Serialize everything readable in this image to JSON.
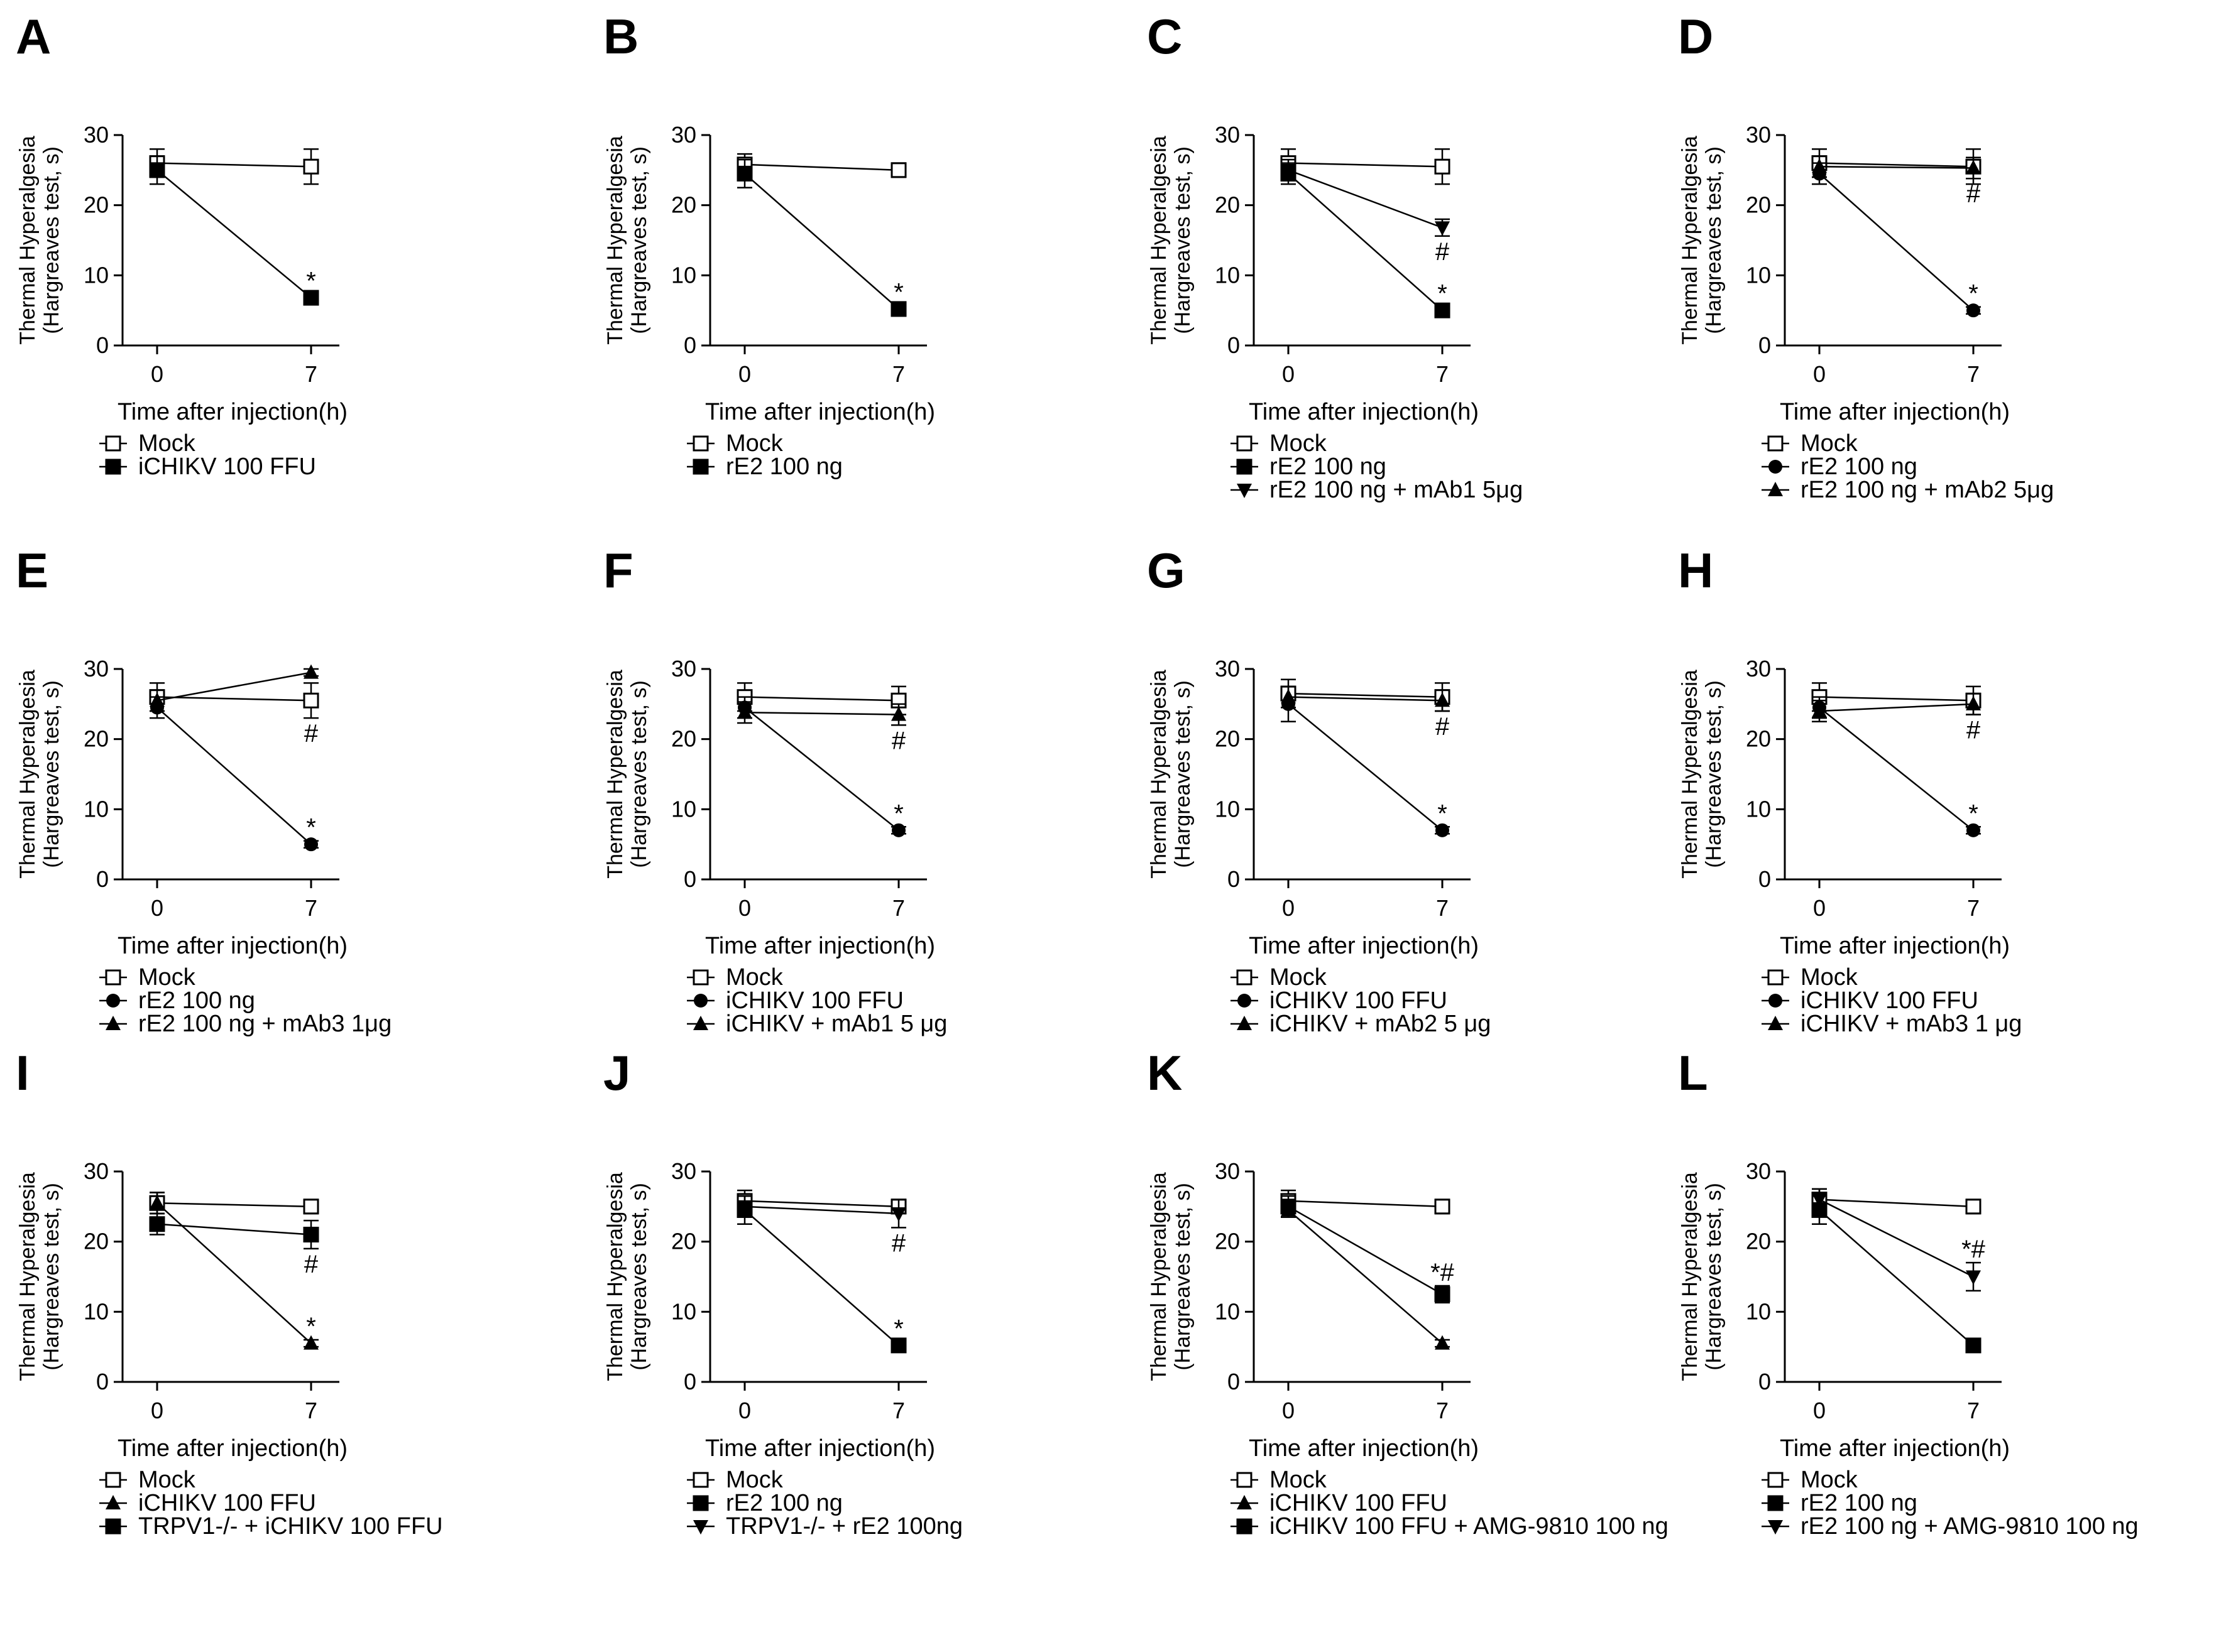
{
  "figure": {
    "background": "#ffffff",
    "ink": "#000000"
  },
  "chart_data": [
    {
      "id": "A",
      "type": "line",
      "panel_label": "A",
      "ylabel_lines": [
        "Thermal Hyperalgesia",
        "(Hargreaves test, s)"
      ],
      "xlabel": "Time after injection(h)",
      "x_categories": [
        "0",
        "7"
      ],
      "y_ticks": [
        0,
        10,
        20,
        30
      ],
      "ylim": [
        0,
        30
      ],
      "series": [
        {
          "name": "Mock",
          "marker": "square-open",
          "values": [
            26,
            25.5
          ],
          "errors": [
            2,
            2.5
          ]
        },
        {
          "name": "iCHIKV 100 FFU",
          "marker": "square",
          "values": [
            25,
            6.8
          ],
          "errors": [
            2,
            0.5
          ]
        }
      ],
      "annotations": [
        {
          "x": "7",
          "series": 1,
          "text": "*"
        }
      ]
    },
    {
      "id": "B",
      "type": "line",
      "panel_label": "B",
      "ylabel_lines": [
        "Thermal Hyperalgesia",
        "(Hargreaves test, s)"
      ],
      "xlabel": "Time after injection(h)",
      "x_categories": [
        "0",
        "7"
      ],
      "y_ticks": [
        0,
        10,
        20,
        30
      ],
      "ylim": [
        0,
        30
      ],
      "series": [
        {
          "name": "Mock",
          "marker": "square-open",
          "values": [
            25.8,
            25
          ],
          "errors": [
            1.5,
            1
          ]
        },
        {
          "name": "rE2 100 ng",
          "marker": "square",
          "values": [
            24.5,
            5.2
          ],
          "errors": [
            2,
            0.5
          ]
        }
      ],
      "annotations": [
        {
          "x": "7",
          "series": 1,
          "text": "*"
        }
      ]
    },
    {
      "id": "C",
      "type": "line",
      "panel_label": "C",
      "ylabel_lines": [
        "Thermal Hyperalgesia",
        "(Hargreaves test, s)"
      ],
      "xlabel": "Time after injection(h)",
      "x_categories": [
        "0",
        "7"
      ],
      "y_ticks": [
        0,
        10,
        20,
        30
      ],
      "ylim": [
        0,
        30
      ],
      "series": [
        {
          "name": "Mock",
          "marker": "square-open",
          "values": [
            26,
            25.5
          ],
          "errors": [
            2,
            2.5
          ]
        },
        {
          "name": "rE2 100 ng",
          "marker": "square",
          "values": [
            24.5,
            5
          ],
          "errors": [
            1.5,
            0.5
          ]
        },
        {
          "name": "rE2 100 ng + mAb1 5μg",
          "marker": "triangle-down",
          "values": [
            25,
            16.8
          ],
          "errors": [
            1.5,
            1.2
          ]
        }
      ],
      "annotations": [
        {
          "x": "7",
          "series": 1,
          "text": "*"
        },
        {
          "x": "7",
          "series": 2,
          "text": "#"
        }
      ]
    },
    {
      "id": "D",
      "type": "line",
      "panel_label": "D",
      "ylabel_lines": [
        "Thermal Hyperalgesia",
        "(Hargreaves test, s)"
      ],
      "xlabel": "Time after injection(h)",
      "x_categories": [
        "0",
        "7"
      ],
      "y_ticks": [
        0,
        10,
        20,
        30
      ],
      "ylim": [
        0,
        30
      ],
      "series": [
        {
          "name": "Mock",
          "marker": "square-open",
          "values": [
            26,
            25.5
          ],
          "errors": [
            2,
            2.5
          ]
        },
        {
          "name": "rE2 100 ng",
          "marker": "circle",
          "values": [
            24.5,
            5
          ],
          "errors": [
            1.5,
            0.5
          ]
        },
        {
          "name": "rE2 100 ng + mAb2 5μg",
          "marker": "triangle",
          "values": [
            25.5,
            25.3
          ],
          "errors": [
            1.5,
            1.5
          ]
        }
      ],
      "annotations": [
        {
          "x": "7",
          "series": 1,
          "text": "*"
        },
        {
          "x": "7",
          "series": 2,
          "text": "#"
        }
      ]
    },
    {
      "id": "E",
      "type": "line",
      "panel_label": "E",
      "ylabel_lines": [
        "Thermal Hyperalgesia",
        "(Hargreaves test, s)"
      ],
      "xlabel": "Time after injection(h)",
      "x_categories": [
        "0",
        "7"
      ],
      "y_ticks": [
        0,
        10,
        20,
        30
      ],
      "ylim": [
        0,
        30
      ],
      "series": [
        {
          "name": "Mock",
          "marker": "square-open",
          "values": [
            26,
            25.5
          ],
          "errors": [
            2,
            2.5
          ]
        },
        {
          "name": "rE2 100 ng",
          "marker": "circle",
          "values": [
            24.5,
            5
          ],
          "errors": [
            1.5,
            0.5
          ]
        },
        {
          "name": "rE2 100 ng + mAb3 1μg",
          "marker": "triangle",
          "values": [
            25.5,
            29.5
          ],
          "errors": [
            1.5,
            0.5
          ]
        }
      ],
      "annotations": [
        {
          "x": "7",
          "series": 1,
          "text": "*"
        },
        {
          "x": "7",
          "series": 0,
          "text": "#"
        }
      ]
    },
    {
      "id": "F",
      "type": "line",
      "panel_label": "F",
      "ylabel_lines": [
        "Thermal Hyperalgesia",
        "(Hargreaves test, s)"
      ],
      "xlabel": "Time after injection(h)",
      "x_categories": [
        "0",
        "7"
      ],
      "y_ticks": [
        0,
        10,
        20,
        30
      ],
      "ylim": [
        0,
        30
      ],
      "series": [
        {
          "name": "Mock",
          "marker": "square-open",
          "values": [
            26,
            25.5
          ],
          "errors": [
            2,
            2
          ]
        },
        {
          "name": "iCHIKV 100 FFU",
          "marker": "circle",
          "values": [
            24.5,
            7
          ],
          "errors": [
            1.5,
            0.5
          ]
        },
        {
          "name": "iCHIKV + mAb1 5 μg",
          "marker": "triangle",
          "values": [
            23.8,
            23.5
          ],
          "errors": [
            1.5,
            1.5
          ]
        }
      ],
      "annotations": [
        {
          "x": "7",
          "series": 1,
          "text": "*"
        },
        {
          "x": "7",
          "series": 2,
          "text": "#"
        }
      ]
    },
    {
      "id": "G",
      "type": "line",
      "panel_label": "G",
      "ylabel_lines": [
        "Thermal Hyperalgesia",
        "(Hargreaves test, s)"
      ],
      "xlabel": "Time after injection(h)",
      "x_categories": [
        "0",
        "7"
      ],
      "y_ticks": [
        0,
        10,
        20,
        30
      ],
      "ylim": [
        0,
        30
      ],
      "series": [
        {
          "name": "Mock",
          "marker": "square-open",
          "values": [
            26.5,
            26
          ],
          "errors": [
            2,
            2
          ]
        },
        {
          "name": "iCHIKV 100 FFU",
          "marker": "circle",
          "values": [
            25,
            7
          ],
          "errors": [
            2.5,
            0.5
          ]
        },
        {
          "name": "iCHIKV + mAb2 5 μg",
          "marker": "triangle",
          "values": [
            26,
            25.5
          ],
          "errors": [
            1.5,
            1.5
          ]
        }
      ],
      "annotations": [
        {
          "x": "7",
          "series": 1,
          "text": "*"
        },
        {
          "x": "7",
          "series": 2,
          "text": "#"
        }
      ]
    },
    {
      "id": "H",
      "type": "line",
      "panel_label": "H",
      "ylabel_lines": [
        "Thermal Hyperalgesia",
        "(Hargreaves test, s)"
      ],
      "xlabel": "Time after injection(h)",
      "x_categories": [
        "0",
        "7"
      ],
      "y_ticks": [
        0,
        10,
        20,
        30
      ],
      "ylim": [
        0,
        30
      ],
      "series": [
        {
          "name": "Mock",
          "marker": "square-open",
          "values": [
            26,
            25.5
          ],
          "errors": [
            2,
            2
          ]
        },
        {
          "name": "iCHIKV 100 FFU",
          "marker": "circle",
          "values": [
            24.5,
            7
          ],
          "errors": [
            1.5,
            0.5
          ]
        },
        {
          "name": "iCHIKV + mAb3 1 μg",
          "marker": "triangle",
          "values": [
            24,
            25
          ],
          "errors": [
            1.5,
            1.5
          ]
        }
      ],
      "annotations": [
        {
          "x": "7",
          "series": 1,
          "text": "*"
        },
        {
          "x": "7",
          "series": 2,
          "text": "#"
        }
      ]
    },
    {
      "id": "I",
      "type": "line",
      "panel_label": "I",
      "ylabel_lines": [
        "Thermal Hyperalgesia",
        "(Hargreaves test, s)"
      ],
      "xlabel": "Time after injection(h)",
      "x_categories": [
        "0",
        "7"
      ],
      "y_ticks": [
        0,
        10,
        20,
        30
      ],
      "ylim": [
        0,
        30
      ],
      "series": [
        {
          "name": "Mock",
          "marker": "square-open",
          "values": [
            25.5,
            25
          ],
          "errors": [
            1.5,
            1
          ]
        },
        {
          "name": "iCHIKV 100 FFU",
          "marker": "triangle",
          "values": [
            25.5,
            5.5
          ],
          "errors": [
            1.5,
            0.5
          ]
        },
        {
          "name": "TRPV1-/- + iCHIKV 100 FFU",
          "marker": "square",
          "values": [
            22.5,
            21
          ],
          "errors": [
            1.5,
            2
          ]
        }
      ],
      "annotations": [
        {
          "x": "7",
          "series": 1,
          "text": "*"
        },
        {
          "x": "7",
          "series": 2,
          "text": "#"
        }
      ]
    },
    {
      "id": "J",
      "type": "line",
      "panel_label": "J",
      "ylabel_lines": [
        "Thermal Hyperalgesia",
        "(Hargreaves test, s)"
      ],
      "xlabel": "Time after injection(h)",
      "x_categories": [
        "0",
        "7"
      ],
      "y_ticks": [
        0,
        10,
        20,
        30
      ],
      "ylim": [
        0,
        30
      ],
      "series": [
        {
          "name": "Mock",
          "marker": "square-open",
          "values": [
            25.8,
            25
          ],
          "errors": [
            1.5,
            1
          ]
        },
        {
          "name": "rE2 100 ng",
          "marker": "square",
          "values": [
            24.5,
            5.2
          ],
          "errors": [
            2,
            0.5
          ]
        },
        {
          "name": "TRPV1-/- + rE2 100ng",
          "marker": "triangle-down",
          "values": [
            25,
            24
          ],
          "errors": [
            1.5,
            2
          ]
        }
      ],
      "annotations": [
        {
          "x": "7",
          "series": 1,
          "text": "*"
        },
        {
          "x": "7",
          "series": 2,
          "text": "#"
        }
      ]
    },
    {
      "id": "K",
      "type": "line",
      "panel_label": "K",
      "ylabel_lines": [
        "Thermal Hyperalgesia",
        "(Hargreaves test, s)"
      ],
      "xlabel": "Time after injection(h)",
      "x_categories": [
        "0",
        "7"
      ],
      "y_ticks": [
        0,
        10,
        20,
        30
      ],
      "ylim": [
        0,
        30
      ],
      "series": [
        {
          "name": "Mock",
          "marker": "square-open",
          "values": [
            25.8,
            25
          ],
          "errors": [
            1.5,
            1
          ]
        },
        {
          "name": "iCHIKV 100 FFU",
          "marker": "triangle",
          "values": [
            24.5,
            5.5
          ],
          "errors": [
            1,
            0.5
          ]
        },
        {
          "name": "iCHIKV 100 FFU + AMG-9810 100 ng",
          "marker": "square",
          "values": [
            25,
            12.5
          ],
          "errors": [
            1.5,
            1.2
          ]
        }
      ],
      "annotations": [
        {
          "x": "7",
          "series": 2,
          "text": "*#"
        }
      ]
    },
    {
      "id": "L",
      "type": "line",
      "panel_label": "L",
      "ylabel_lines": [
        "Thermal Hyperalgesia",
        "(Hargreaves test, s)"
      ],
      "xlabel": "Time after injection(h)",
      "x_categories": [
        "0",
        "7"
      ],
      "y_ticks": [
        0,
        10,
        20,
        30
      ],
      "ylim": [
        0,
        30
      ],
      "series": [
        {
          "name": "Mock",
          "marker": "square-open",
          "values": [
            26,
            25
          ],
          "errors": [
            1.5,
            1
          ]
        },
        {
          "name": "rE2 100 ng",
          "marker": "square",
          "values": [
            24.5,
            5.2
          ],
          "errors": [
            2,
            0.5
          ]
        },
        {
          "name": "rE2 100 ng + AMG-9810 100 ng",
          "marker": "triangle-down",
          "values": [
            26,
            15
          ],
          "errors": [
            1.5,
            2
          ]
        }
      ],
      "annotations": [
        {
          "x": "7",
          "series": 2,
          "text": "*#"
        }
      ]
    }
  ]
}
